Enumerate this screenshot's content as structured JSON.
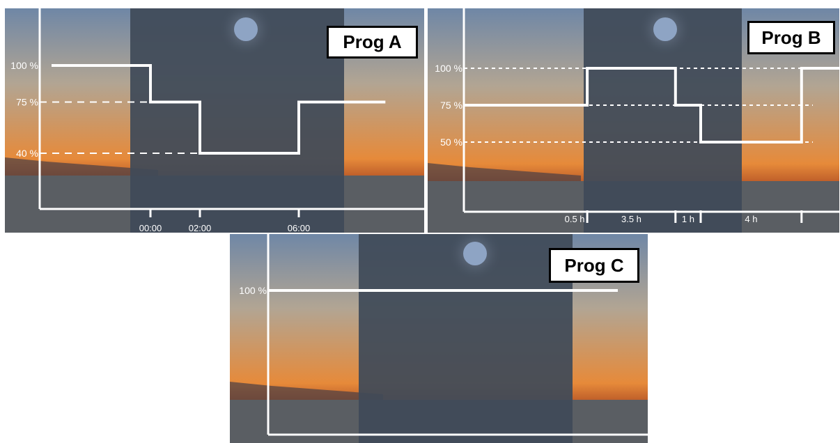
{
  "colors": {
    "line": "#ffffff",
    "sky_top": "#6f87a6",
    "sky_mid": "#b2a593",
    "sky_horizon": "#e68a3a",
    "night_overlay": "#3f4a58",
    "sea": "#5a5e63",
    "moon": "#8ea4c4",
    "label_bg": "#ffffff",
    "label_border": "#000000"
  },
  "chart_data": [
    {
      "type": "line",
      "title": "Prog A",
      "xlabel": "",
      "ylabel": "",
      "y_ticks": [
        {
          "value": 100,
          "label": "100 %"
        },
        {
          "value": 75,
          "label": "75 %"
        },
        {
          "value": 40,
          "label": "40 %"
        }
      ],
      "x_ticks": [
        {
          "value": 0,
          "label": "00:00"
        },
        {
          "value": 2,
          "label": "02:00"
        },
        {
          "value": 6,
          "label": "06:00"
        }
      ],
      "series": [
        {
          "steps": [
            {
              "x": -4,
              "y": 100
            },
            {
              "x": 0,
              "y": 100
            },
            {
              "x": 0,
              "y": 75
            },
            {
              "x": 2,
              "y": 75
            },
            {
              "x": 2,
              "y": 40
            },
            {
              "x": 6,
              "y": 40
            },
            {
              "x": 6,
              "y": 75
            },
            {
              "x": 9.5,
              "y": 75
            }
          ]
        }
      ],
      "grid": "dashed reference lines at each level",
      "legend": "none"
    },
    {
      "type": "line",
      "title": "Prog B",
      "xlabel": "",
      "ylabel": "",
      "y_ticks": [
        {
          "value": 100,
          "label": "100 %"
        },
        {
          "value": 75,
          "label": "75 %"
        },
        {
          "value": 50,
          "label": "50 %"
        }
      ],
      "x_intervals": [
        {
          "label": "0.5 h",
          "hours": 0.5
        },
        {
          "label": "3.5 h",
          "hours": 3.5
        },
        {
          "label": "1 h",
          "hours": 1
        },
        {
          "label": "4 h",
          "hours": 4
        }
      ],
      "series": [
        {
          "steps": [
            {
              "x": -5,
              "y": 75
            },
            {
              "x": 0.5,
              "y": 75
            },
            {
              "x": 0.5,
              "y": 100
            },
            {
              "x": 4,
              "y": 100
            },
            {
              "x": 4,
              "y": 75
            },
            {
              "x": 5,
              "y": 75
            },
            {
              "x": 5,
              "y": 50
            },
            {
              "x": 9,
              "y": 50
            },
            {
              "x": 9,
              "y": 100
            },
            {
              "x": 11,
              "y": 100
            }
          ]
        }
      ],
      "grid": "dotted reference lines at each level",
      "legend": "none"
    },
    {
      "type": "line",
      "title": "Prog C",
      "xlabel": "",
      "ylabel": "",
      "y_ticks": [
        {
          "value": 100,
          "label": "100 %"
        }
      ],
      "series": [
        {
          "steps": [
            {
              "x": 0,
              "y": 100
            },
            {
              "x": 1,
              "y": 100
            }
          ]
        }
      ],
      "grid": "none",
      "legend": "none"
    }
  ]
}
